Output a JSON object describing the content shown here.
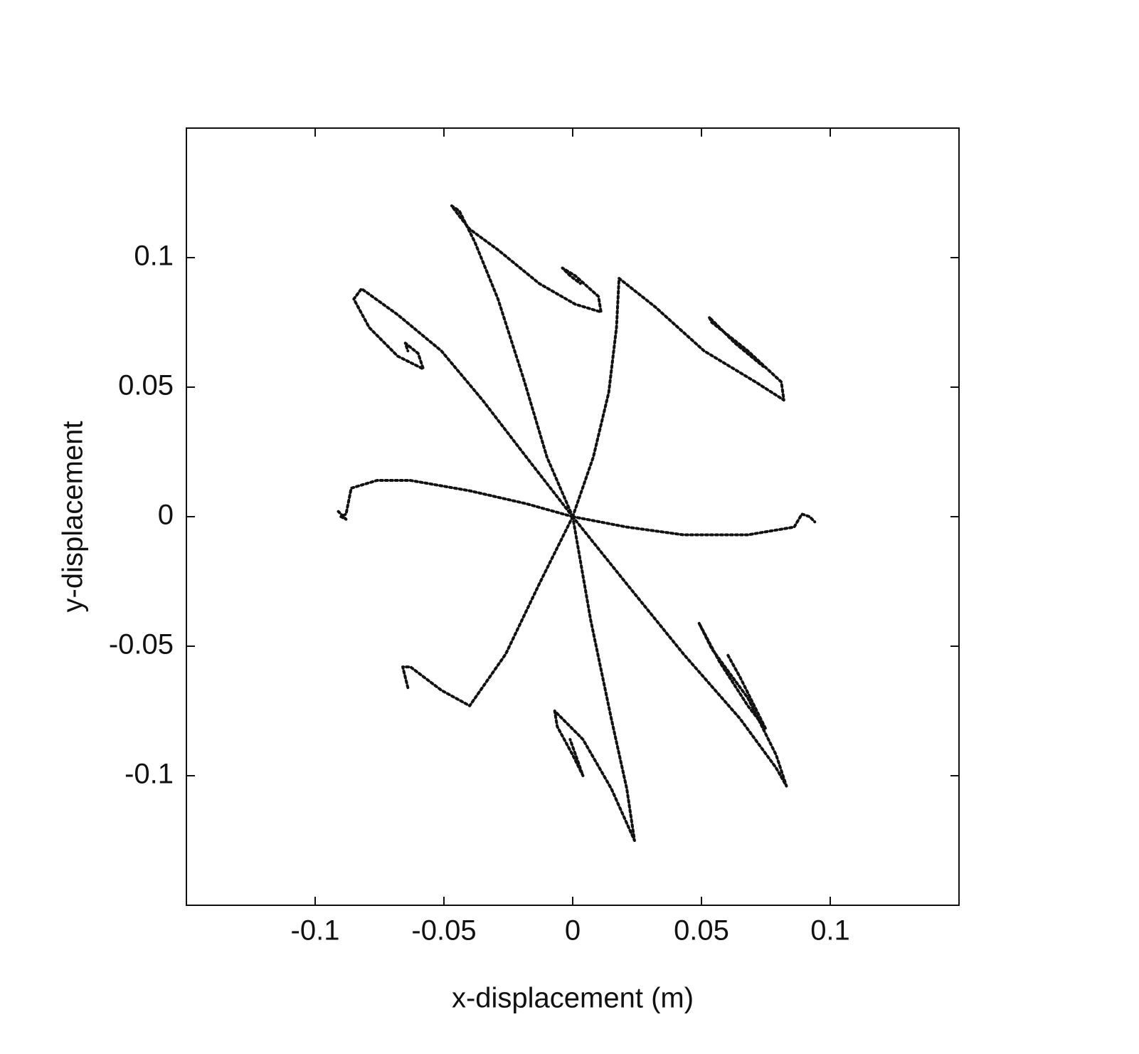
{
  "chart_data": {
    "type": "line",
    "x_label": "x-displacement (m)",
    "y_label": "y-displacement",
    "xlim": [
      -0.15,
      0.15
    ],
    "ylim": [
      -0.15,
      0.15
    ],
    "xticks": [
      -0.1,
      -0.05,
      0,
      0.05,
      0.1
    ],
    "yticks": [
      -0.1,
      -0.05,
      0,
      0.05,
      0.1
    ],
    "series": [
      {
        "color": "#111111",
        "x": [
          0,
          -0.01,
          -0.019,
          -0.029,
          -0.038,
          -0.044,
          -0.047,
          -0.044,
          -0.04,
          -0.029,
          -0.013,
          0.001,
          0.011,
          0.01,
          0.001,
          -0.004,
          -0.001,
          0.003
        ],
        "y": [
          0,
          0.023,
          0.053,
          0.084,
          0.106,
          0.118,
          0.12,
          0.116,
          0.111,
          0.103,
          0.09,
          0.082,
          0.079,
          0.085,
          0.093,
          0.096,
          0.093,
          0.09
        ]
      },
      {
        "color": "#111111",
        "x": [
          0,
          -0.018,
          -0.035,
          -0.051,
          -0.068,
          -0.082,
          -0.085,
          -0.079,
          -0.068,
          -0.058,
          -0.06,
          -0.065,
          -0.064
        ],
        "y": [
          0,
          0.023,
          0.045,
          0.064,
          0.078,
          0.088,
          0.084,
          0.073,
          0.062,
          0.057,
          0.063,
          0.067,
          0.064
        ]
      },
      {
        "color": "#111111",
        "x": [
          0,
          0.008,
          0.014,
          0.017,
          0.018,
          0.032,
          0.051,
          0.071,
          0.082,
          0.081,
          0.068,
          0.054,
          0.053,
          0.063,
          0.074
        ],
        "y": [
          0,
          0.023,
          0.048,
          0.073,
          0.092,
          0.081,
          0.064,
          0.052,
          0.045,
          0.052,
          0.064,
          0.075,
          0.077,
          0.067,
          0.058
        ]
      },
      {
        "color": "#111111",
        "x": [
          0,
          -0.018,
          -0.04,
          -0.063,
          -0.076,
          -0.086,
          -0.088,
          -0.09,
          -0.088,
          -0.091
        ],
        "y": [
          0,
          0.005,
          0.01,
          0.014,
          0.014,
          0.011,
          0.001,
          0,
          -0.001,
          0.002
        ]
      },
      {
        "color": "#111111",
        "x": [
          0,
          0.021,
          0.043,
          0.068,
          0.086,
          0.089,
          0.092,
          0.094
        ],
        "y": [
          0,
          -0.004,
          -0.007,
          -0.007,
          -0.004,
          0.001,
          0,
          -0.002
        ]
      },
      {
        "color": "#111111",
        "x": [
          0,
          -0.013,
          -0.026,
          -0.04,
          -0.051,
          -0.063,
          -0.066,
          -0.064
        ],
        "y": [
          0,
          -0.026,
          -0.053,
          -0.073,
          -0.067,
          -0.058,
          -0.058,
          -0.066
        ]
      },
      {
        "color": "#111111",
        "x": [
          0,
          0.007,
          0.015,
          0.021,
          0.024,
          0.015,
          0.004,
          -0.007,
          -0.006,
          0,
          0.004,
          -0.001
        ],
        "y": [
          0,
          -0.04,
          -0.078,
          -0.105,
          -0.125,
          -0.105,
          -0.086,
          -0.075,
          -0.081,
          -0.092,
          -0.1,
          -0.086
        ]
      },
      {
        "color": "#111111",
        "x": [
          0,
          0.021,
          0.043,
          0.065,
          0.079,
          0.083,
          0.079,
          0.068,
          0.054,
          0.049,
          0.057,
          0.068,
          0.075,
          0.065,
          0.06
        ],
        "y": [
          0,
          -0.026,
          -0.053,
          -0.078,
          -0.097,
          -0.104,
          -0.092,
          -0.07,
          -0.051,
          -0.041,
          -0.056,
          -0.073,
          -0.082,
          -0.062,
          -0.053
        ]
      }
    ]
  }
}
